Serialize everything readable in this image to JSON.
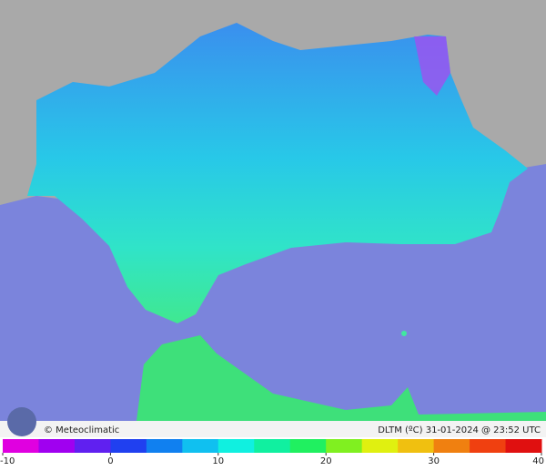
{
  "header": {
    "credit": "© Meteoclimatic",
    "caption": "DLTM (ºC) 31-01-2024 @ 23:52 UTC"
  },
  "colorbar": {
    "range": [
      -10,
      40
    ],
    "ticks": [
      -10,
      0,
      10,
      20,
      30,
      40
    ],
    "colors": [
      "#e000e0",
      "#a000f0",
      "#6020f0",
      "#2040f0",
      "#1080f0",
      "#10c0f0",
      "#10f0e0",
      "#10f0a0",
      "#20f060",
      "#80f020",
      "#e0f010",
      "#f0c010",
      "#f08010",
      "#f04010",
      "#e01010"
    ]
  }
}
